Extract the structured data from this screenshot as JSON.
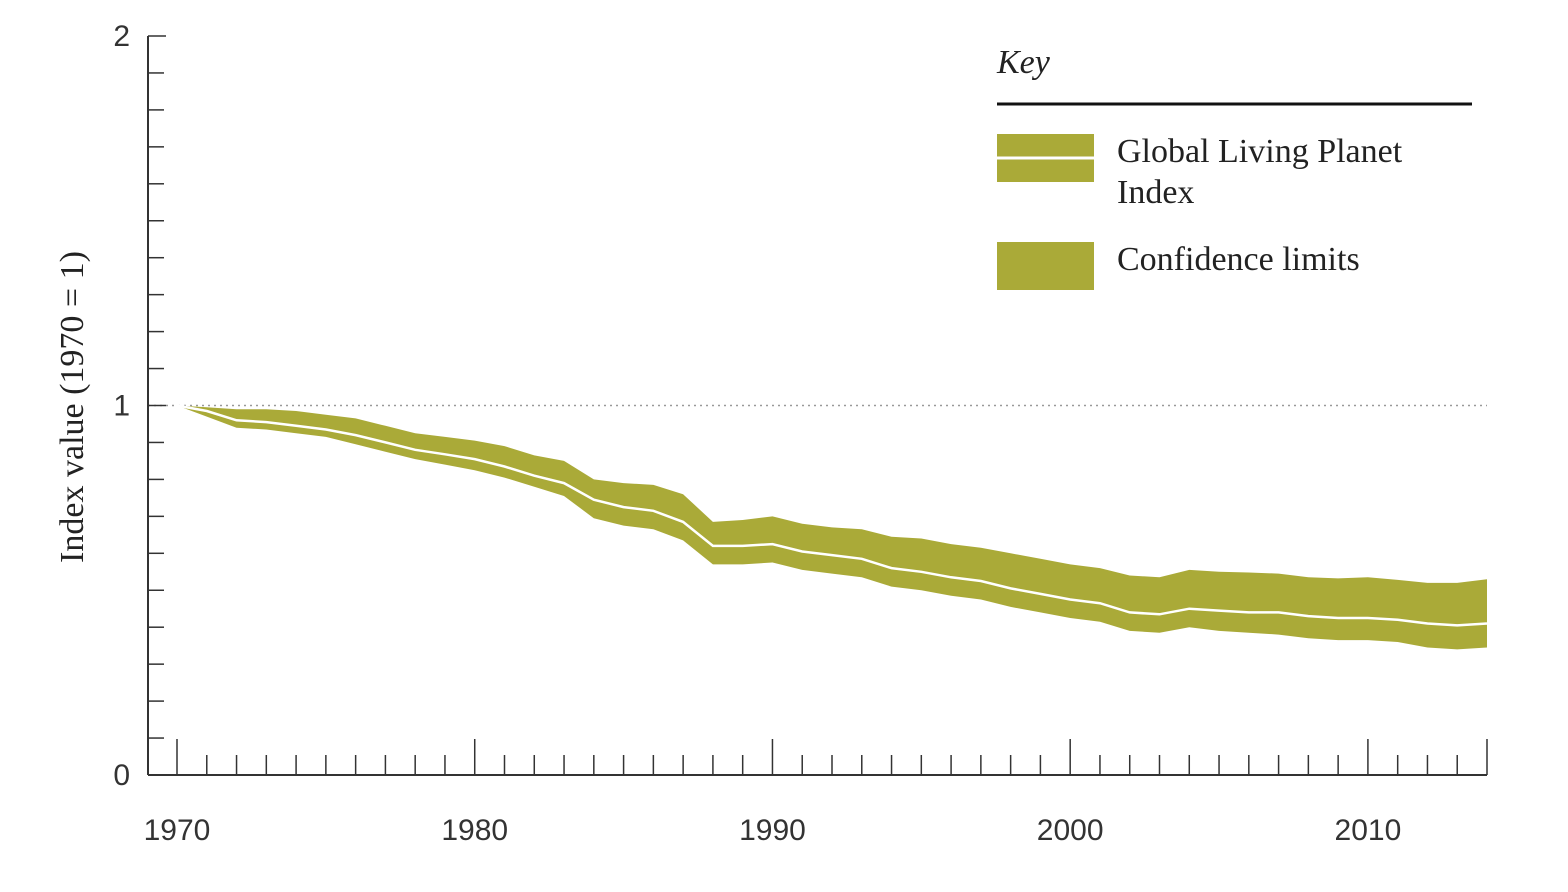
{
  "chart_data": {
    "type": "area",
    "title": "",
    "xlabel": "",
    "ylabel": "Index value (1970 = 1)",
    "xlim": [
      1970,
      2014
    ],
    "ylim": [
      0,
      2
    ],
    "x_ticks": [
      "1970",
      "1980",
      "1990",
      "2000",
      "2010"
    ],
    "y_ticks": [
      "0",
      "1",
      "2"
    ],
    "reference_line": 1,
    "colors": {
      "band": "#aaaa38",
      "line": "#ffffff",
      "axis": "#333333",
      "reference": "#999999"
    },
    "legend": {
      "title": "Key",
      "position": "top-right",
      "items": [
        {
          "label_lines": [
            "Global Living Planet",
            "Index"
          ],
          "symbol": "band-with-line"
        },
        {
          "label_lines": [
            "Confidence limits"
          ],
          "symbol": "band"
        }
      ]
    },
    "x": [
      1970,
      1971,
      1972,
      1973,
      1974,
      1975,
      1976,
      1977,
      1978,
      1979,
      1980,
      1981,
      1982,
      1983,
      1984,
      1985,
      1986,
      1987,
      1988,
      1989,
      1990,
      1991,
      1992,
      1993,
      1994,
      1995,
      1996,
      1997,
      1998,
      1999,
      2000,
      2001,
      2002,
      2003,
      2004,
      2005,
      2006,
      2007,
      2008,
      2009,
      2010,
      2011,
      2012,
      2013,
      2014
    ],
    "series": [
      {
        "name": "Global Living Planet Index",
        "values": [
          1.0,
          0.985,
          0.96,
          0.955,
          0.945,
          0.935,
          0.92,
          0.9,
          0.88,
          0.868,
          0.855,
          0.835,
          0.81,
          0.79,
          0.745,
          0.725,
          0.715,
          0.685,
          0.62,
          0.62,
          0.625,
          0.605,
          0.595,
          0.585,
          0.56,
          0.55,
          0.535,
          0.525,
          0.505,
          0.49,
          0.475,
          0.465,
          0.44,
          0.435,
          0.45,
          0.445,
          0.44,
          0.44,
          0.43,
          0.425,
          0.425,
          0.42,
          0.41,
          0.405,
          0.41
        ]
      },
      {
        "name": "Confidence limits (upper)",
        "values": [
          1.0,
          0.995,
          0.99,
          0.99,
          0.985,
          0.975,
          0.965,
          0.945,
          0.925,
          0.915,
          0.905,
          0.89,
          0.865,
          0.85,
          0.8,
          0.79,
          0.785,
          0.76,
          0.685,
          0.69,
          0.7,
          0.68,
          0.67,
          0.665,
          0.645,
          0.64,
          0.625,
          0.615,
          0.6,
          0.585,
          0.57,
          0.56,
          0.54,
          0.535,
          0.555,
          0.55,
          0.548,
          0.545,
          0.535,
          0.532,
          0.535,
          0.528,
          0.52,
          0.52,
          0.53
        ]
      },
      {
        "name": "Confidence limits (lower)",
        "values": [
          1.0,
          0.97,
          0.94,
          0.935,
          0.925,
          0.915,
          0.895,
          0.875,
          0.855,
          0.84,
          0.825,
          0.805,
          0.78,
          0.755,
          0.695,
          0.675,
          0.665,
          0.635,
          0.57,
          0.57,
          0.575,
          0.555,
          0.545,
          0.535,
          0.51,
          0.5,
          0.485,
          0.475,
          0.455,
          0.44,
          0.425,
          0.415,
          0.39,
          0.385,
          0.4,
          0.39,
          0.385,
          0.38,
          0.37,
          0.365,
          0.365,
          0.36,
          0.345,
          0.34,
          0.345
        ]
      }
    ]
  }
}
